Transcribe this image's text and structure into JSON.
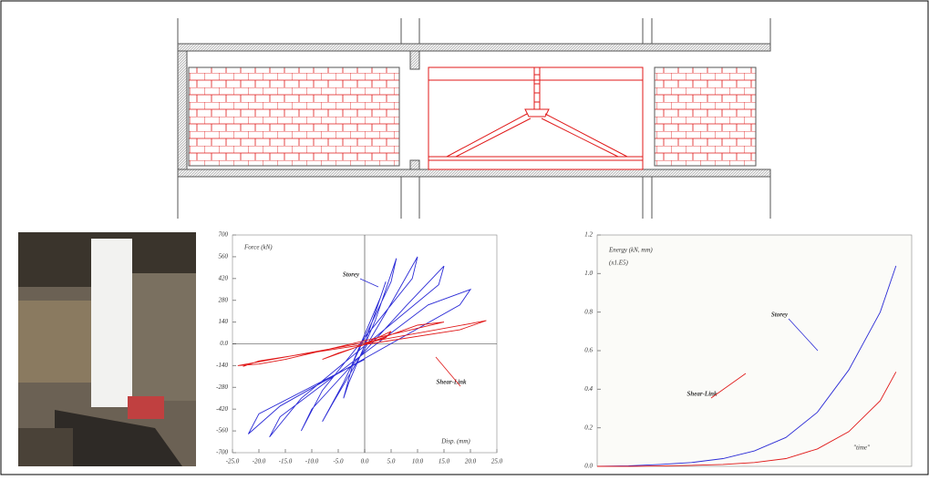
{
  "chart_data": [
    {
      "type": "line",
      "x_label": "Disp. (mm)",
      "y_label": "Force (kN)",
      "xlim": [
        -25,
        25
      ],
      "xticks": [
        {
          "value": -25,
          "label": "-25.0"
        },
        {
          "value": -20,
          "label": "-20.0"
        },
        {
          "value": -15,
          "label": "-15.0"
        },
        {
          "value": -10,
          "label": "-10.0"
        },
        {
          "value": -5,
          "label": "-5.0"
        },
        {
          "value": 0,
          "label": "0.0"
        },
        {
          "value": 5,
          "label": "5.0"
        },
        {
          "value": 10,
          "label": "10.0"
        },
        {
          "value": 15,
          "label": "15.0"
        },
        {
          "value": 20,
          "label": "20.0"
        },
        {
          "value": 25,
          "label": "25.0"
        }
      ],
      "ylim": [
        -700,
        700
      ],
      "yticks": [
        -700,
        -560,
        -420,
        -280,
        -140,
        {
          "value": 0,
          "label": "0.0"
        },
        140,
        280,
        420,
        560,
        700
      ],
      "series": [
        {
          "name": "Storey",
          "color": "#2b2bd6",
          "x": [
            0,
            2,
            4,
            3,
            -2,
            -4,
            -3,
            2,
            6,
            5,
            -4,
            -8,
            -6,
            4,
            10,
            9,
            -8,
            -12,
            -10,
            8,
            15,
            14,
            -12,
            -18,
            -16,
            12,
            20,
            18,
            -16,
            -22,
            -20,
            0
          ],
          "values": [
            0,
            200,
            400,
            300,
            -100,
            -350,
            -250,
            150,
            550,
            400,
            -250,
            -500,
            -380,
            200,
            560,
            420,
            -300,
            -560,
            -420,
            250,
            500,
            380,
            -350,
            -600,
            -470,
            250,
            350,
            250,
            -400,
            -580,
            -450,
            -100
          ]
        },
        {
          "name": "Shear-Link",
          "color": "#e01818",
          "x": [
            0,
            5,
            4,
            -5,
            -8,
            10,
            15,
            -15,
            -20,
            -24,
            20,
            23,
            18,
            -20,
            -23
          ],
          "values": [
            0,
            80,
            40,
            -60,
            -100,
            120,
            140,
            -100,
            -130,
            -140,
            130,
            150,
            90,
            -110,
            -145
          ]
        }
      ]
    },
    {
      "type": "line",
      "x_label": "\"time\"",
      "y_label": "Energy (kN, mm)",
      "y_label_2": "(x1.E5)",
      "xlim": [
        0,
        1
      ],
      "ylim": [
        0,
        1.2
      ],
      "yticks": [
        {
          "value": 0,
          "label": "0.0"
        },
        0.2,
        0.4,
        0.6,
        0.8,
        {
          "value": 1,
          "label": "1.0"
        },
        1.2
      ],
      "x": [
        0,
        0.1,
        0.2,
        0.3,
        0.4,
        0.5,
        0.6,
        0.7,
        0.8,
        0.9,
        0.95
      ],
      "series": [
        {
          "name": "Storey",
          "color": "#2b2bd6",
          "values": [
            0,
            0.003,
            0.01,
            0.02,
            0.04,
            0.08,
            0.15,
            0.28,
            0.5,
            0.8,
            1.04
          ]
        },
        {
          "name": "Shear-Link",
          "color": "#e01818",
          "values": [
            0,
            0,
            0.002,
            0.005,
            0.01,
            0.02,
            0.04,
            0.09,
            0.18,
            0.34,
            0.49
          ]
        }
      ]
    }
  ]
}
